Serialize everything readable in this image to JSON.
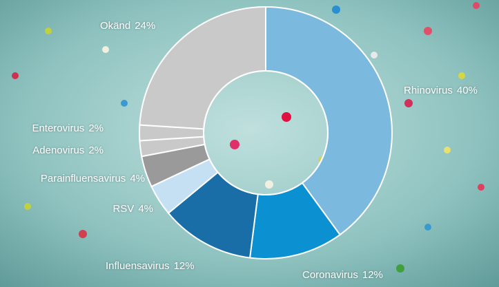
{
  "chart_data": {
    "type": "donut",
    "categories": [
      "Rhinovirus",
      "Coronavirus",
      "Influensavirus",
      "RSV",
      "Parainfluensavirus",
      "Adenovirus",
      "Enterovirus",
      "Okänd"
    ],
    "values": [
      40,
      12,
      12,
      4,
      4,
      2,
      2,
      24
    ],
    "value_labels": [
      "40%",
      "12%",
      "12%",
      "4%",
      "4%",
      "2%",
      "2%",
      "24%"
    ],
    "colors": [
      "#7cb9de",
      "#0b91d1",
      "#1a6ea8",
      "#c6e0f3",
      "#9a9a9a",
      "#c9c9c9",
      "#c9c9c9",
      "#c9c9c9"
    ]
  }
}
